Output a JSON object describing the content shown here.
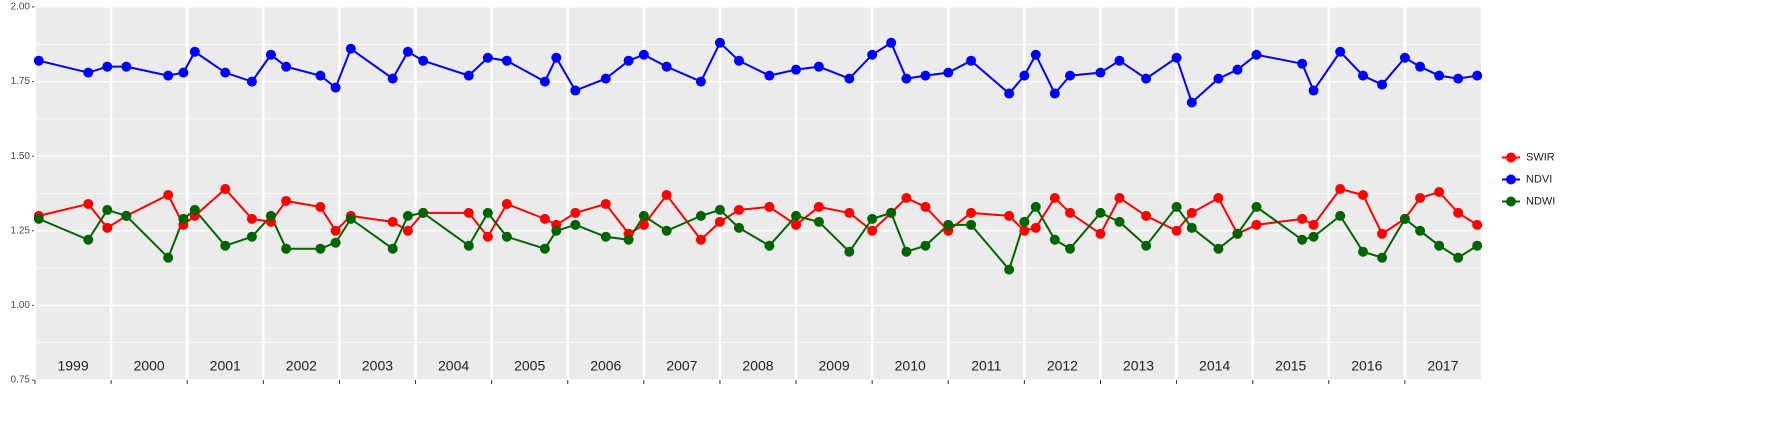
{
  "chart_data": {
    "type": "line",
    "x": [
      1999.05,
      1999.7,
      1999.95,
      2000.2,
      2000.75,
      2000.95,
      2001.1,
      2001.5,
      2001.85,
      2002.1,
      2002.3,
      2002.75,
      2002.95,
      2003.15,
      2003.7,
      2003.9,
      2004.1,
      2004.7,
      2004.95,
      2005.2,
      2005.7,
      2005.85,
      2006.1,
      2006.5,
      2006.8,
      2007.0,
      2007.3,
      2007.75,
      2008.0,
      2008.25,
      2008.65,
      2009.0,
      2009.3,
      2009.7,
      2010.0,
      2010.25,
      2010.45,
      2010.7,
      2011.0,
      2011.3,
      2011.8,
      2012.0,
      2012.15,
      2012.4,
      2012.6,
      2013.0,
      2013.25,
      2013.6,
      2014.0,
      2014.2,
      2014.55,
      2014.8,
      2015.05,
      2015.65,
      2015.8,
      2016.15,
      2016.45,
      2016.7,
      2017.0,
      2017.2,
      2017.45,
      2017.7,
      2017.95
    ],
    "series": [
      {
        "name": "SWIR",
        "color": "#ff0000",
        "values": [
          1.3,
          1.34,
          1.26,
          1.3,
          1.37,
          1.27,
          1.3,
          1.39,
          1.29,
          1.28,
          1.35,
          1.33,
          1.25,
          1.3,
          1.28,
          1.25,
          1.31,
          1.31,
          1.23,
          1.34,
          1.29,
          1.27,
          1.31,
          1.34,
          1.24,
          1.27,
          1.37,
          1.22,
          1.28,
          1.32,
          1.33,
          1.27,
          1.33,
          1.31,
          1.25,
          1.31,
          1.36,
          1.33,
          1.25,
          1.31,
          1.3,
          1.25,
          1.26,
          1.36,
          1.31,
          1.24,
          1.36,
          1.3,
          1.25,
          1.31,
          1.36,
          1.24,
          1.27,
          1.29,
          1.27,
          1.39,
          1.37,
          1.24,
          1.29,
          1.36,
          1.38,
          1.31,
          1.27
        ]
      },
      {
        "name": "NDVI",
        "color": "#0000ff",
        "values": [
          1.82,
          1.78,
          1.8,
          1.8,
          1.77,
          1.78,
          1.85,
          1.78,
          1.75,
          1.84,
          1.8,
          1.77,
          1.73,
          1.86,
          1.76,
          1.85,
          1.82,
          1.77,
          1.83,
          1.82,
          1.75,
          1.83,
          1.72,
          1.76,
          1.82,
          1.84,
          1.8,
          1.75,
          1.88,
          1.82,
          1.77,
          1.79,
          1.8,
          1.76,
          1.84,
          1.88,
          1.76,
          1.77,
          1.78,
          1.82,
          1.71,
          1.77,
          1.84,
          1.71,
          1.77,
          1.78,
          1.82,
          1.76,
          1.83,
          1.68,
          1.76,
          1.79,
          1.84,
          1.81,
          1.72,
          1.85,
          1.77,
          1.74,
          1.83,
          1.8,
          1.77,
          1.76,
          1.77
        ]
      },
      {
        "name": "NDWI",
        "color": "#006400",
        "values": [
          1.29,
          1.22,
          1.32,
          1.3,
          1.16,
          1.29,
          1.32,
          1.2,
          1.23,
          1.3,
          1.19,
          1.19,
          1.21,
          1.29,
          1.19,
          1.3,
          1.31,
          1.2,
          1.31,
          1.23,
          1.19,
          1.25,
          1.27,
          1.23,
          1.22,
          1.3,
          1.25,
          1.3,
          1.32,
          1.26,
          1.2,
          1.3,
          1.28,
          1.18,
          1.29,
          1.31,
          1.18,
          1.2,
          1.27,
          1.27,
          1.12,
          1.28,
          1.33,
          1.22,
          1.19,
          1.31,
          1.28,
          1.2,
          1.33,
          1.26,
          1.19,
          1.24,
          1.33,
          1.22,
          1.23,
          1.3,
          1.18,
          1.16,
          1.29,
          1.25,
          1.2,
          1.16,
          1.2
        ]
      }
    ],
    "xlim": [
      1999,
      2018
    ],
    "xticks": [
      {
        "value": 1999,
        "label": "1999"
      },
      {
        "value": 2000,
        "label": "2000"
      },
      {
        "value": 2001,
        "label": "2001"
      },
      {
        "value": 2002,
        "label": "2002"
      },
      {
        "value": 2003,
        "label": "2003"
      },
      {
        "value": 2004,
        "label": "2004"
      },
      {
        "value": 2005,
        "label": "2005"
      },
      {
        "value": 2006,
        "label": "2006"
      },
      {
        "value": 2007,
        "label": "2007"
      },
      {
        "value": 2008,
        "label": "2008"
      },
      {
        "value": 2009,
        "label": "2009"
      },
      {
        "value": 2010,
        "label": "2010"
      },
      {
        "value": 2011,
        "label": "2011"
      },
      {
        "value": 2012,
        "label": "2012"
      },
      {
        "value": 2013,
        "label": "2013"
      },
      {
        "value": 2014,
        "label": "2014"
      },
      {
        "value": 2015,
        "label": "2015"
      },
      {
        "value": 2016,
        "label": "2016"
      },
      {
        "value": 2017,
        "label": "2017"
      }
    ],
    "ylim": [
      0.75,
      2.0
    ],
    "yticks": [
      {
        "value": 0.75,
        "label": "0.75"
      },
      {
        "value": 1.0,
        "label": "1.00"
      },
      {
        "value": 1.25,
        "label": "1.25"
      },
      {
        "value": 1.5,
        "label": "1.50"
      },
      {
        "value": 1.75,
        "label": "1.75"
      },
      {
        "value": 2.0,
        "label": "2.00"
      }
    ],
    "grid": true,
    "legend": "right"
  }
}
